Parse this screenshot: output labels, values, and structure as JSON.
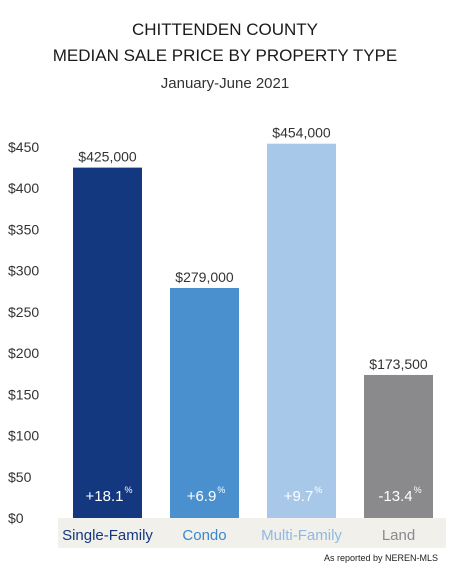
{
  "header": {
    "line1": "CHITTENDEN COUNTY",
    "line2": "MEDIAN SALE PRICE BY PROPERTY TYPE",
    "line3": "January-June 2021"
  },
  "footer": {
    "source": "As reported by NEREN-MLS"
  },
  "chart_data": {
    "type": "bar",
    "title": "CHITTENDEN COUNTY MEDIAN SALE PRICE BY PROPERTY TYPE",
    "subtitle": "January-June 2021",
    "xlabel": "",
    "ylabel": "",
    "ylim": [
      0,
      450
    ],
    "yticks": [
      0,
      50,
      100,
      150,
      200,
      250,
      300,
      350,
      400,
      450
    ],
    "ytick_labels": [
      "$0",
      "$50",
      "$100",
      "$150",
      "$200",
      "$250",
      "$300",
      "$350",
      "$400",
      "$450"
    ],
    "grid": false,
    "categories": [
      "Single-Family",
      "Condo",
      "Multi-Family",
      "Land"
    ],
    "values": [
      425,
      279,
      454,
      173.5
    ],
    "value_labels": [
      "$425,000",
      "$279,000",
      "$454,000",
      "$173,500"
    ],
    "change_labels": [
      "+18.1",
      "+6.9",
      "+9.7",
      "-13.4"
    ],
    "change_unit": "%",
    "colors": [
      "#14387f",
      "#4a90cf",
      "#a7c8e8",
      "#8a8a8c"
    ],
    "category_label_colors": [
      "#14387f",
      "#3b87cc",
      "#8fb8e2",
      "#8a8a8c"
    ]
  }
}
